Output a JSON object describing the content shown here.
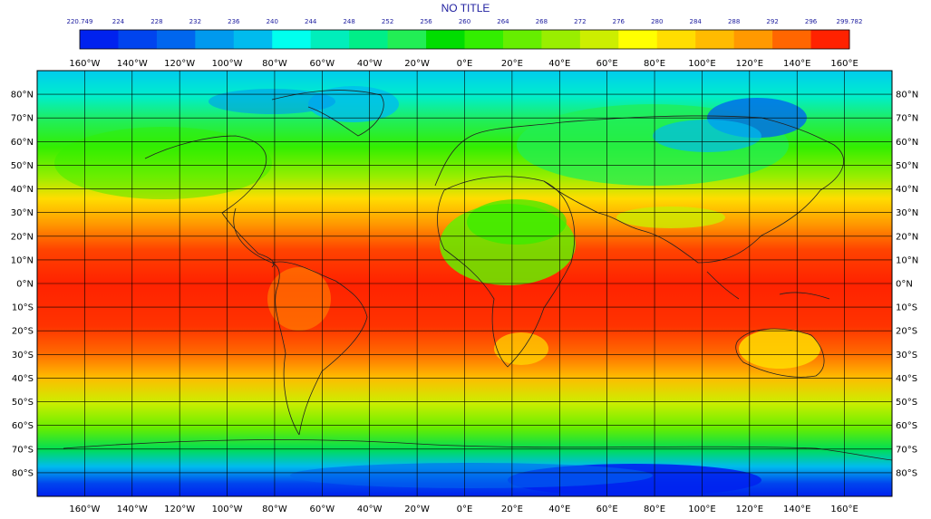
{
  "title": "NO TITLE",
  "colorbar": {
    "tick_labels": [
      "220.749",
      "224",
      "228",
      "232",
      "236",
      "240",
      "244",
      "248",
      "252",
      "256",
      "260",
      "264",
      "268",
      "272",
      "276",
      "280",
      "284",
      "288",
      "292",
      "296",
      "299.782"
    ],
    "colors": [
      "#0022ee",
      "#0044ee",
      "#0066ee",
      "#0099ee",
      "#00bbee",
      "#00ffee",
      "#00eebb",
      "#00ee88",
      "#22ee55",
      "#00dd00",
      "#33ee00",
      "#66ee00",
      "#99ee00",
      "#ccee00",
      "#ffff00",
      "#ffdd00",
      "#ffbb00",
      "#ff9900",
      "#ff6600",
      "#ff2200"
    ]
  },
  "axes": {
    "lon_labels": [
      "160°W",
      "140°W",
      "120°W",
      "100°W",
      "80°W",
      "60°W",
      "40°W",
      "20°W",
      "0°E",
      "20°E",
      "40°E",
      "60°E",
      "80°E",
      "100°E",
      "120°E",
      "140°E",
      "160°E"
    ],
    "lat_labels": [
      "80°N",
      "70°N",
      "60°N",
      "50°N",
      "40°N",
      "30°N",
      "20°N",
      "10°N",
      "0°N",
      "10°S",
      "20°S",
      "30°S",
      "40°S",
      "50°S",
      "60°S",
      "70°S",
      "80°S"
    ]
  }
}
